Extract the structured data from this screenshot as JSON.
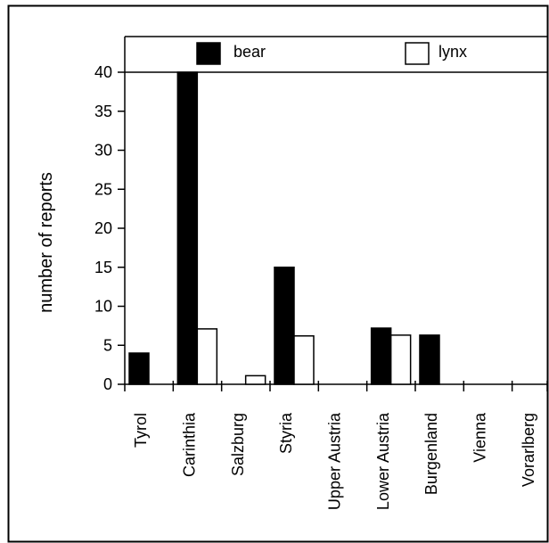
{
  "chart_data": {
    "type": "bar",
    "title": "",
    "xlabel": "",
    "ylabel": "number of reports",
    "ylim": [
      0,
      40
    ],
    "yticks": [
      0,
      5,
      10,
      15,
      20,
      25,
      30,
      35,
      40
    ],
    "categories": [
      "Tyrol",
      "Carinthia",
      "Salzburg",
      "Styria",
      "Upper Austria",
      "Lower Austria",
      "Burgenland",
      "Vienna",
      "Vorarlberg"
    ],
    "series": [
      {
        "name": "bear",
        "color": "#000000",
        "values": [
          4,
          40,
          0,
          15,
          0,
          7.2,
          6.3,
          0,
          0
        ]
      },
      {
        "name": "lynx",
        "color": "#ffffff",
        "values": [
          0,
          7.1,
          1.1,
          6.2,
          0,
          6.3,
          0,
          0,
          0
        ]
      }
    ],
    "legend_position": "top",
    "grid": false
  }
}
